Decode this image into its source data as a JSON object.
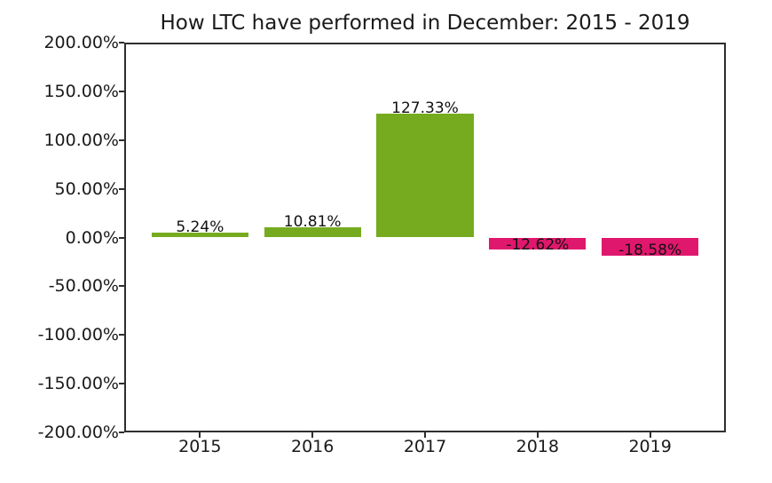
{
  "chart_data": {
    "type": "bar",
    "title": "How LTC have performed in December: 2015 - 2019",
    "categories": [
      "2015",
      "2016",
      "2017",
      "2018",
      "2019"
    ],
    "values": [
      5.24,
      10.81,
      127.33,
      -12.62,
      -18.58
    ],
    "bar_labels": [
      "5.24%",
      "10.81%",
      "127.33%",
      "-12.62%",
      "-18.58%"
    ],
    "xlabel": "",
    "ylabel": "",
    "ylim": [
      -200,
      200
    ],
    "ytick_step": 50,
    "ytick_labels": [
      "200.00%",
      "150.00%",
      "100.00%",
      "50.00%",
      "0.00%",
      "-50.00%",
      "-100.00%",
      "-150.00%",
      "-200.00%"
    ],
    "grid": false,
    "legend": "none",
    "label_offset_pct": 5,
    "colors": {
      "positive": "#76ab1f",
      "negative": "#e0186d",
      "axis": "#2e2e2e",
      "text": "#1a1a1a",
      "background": "#ffffff"
    }
  }
}
